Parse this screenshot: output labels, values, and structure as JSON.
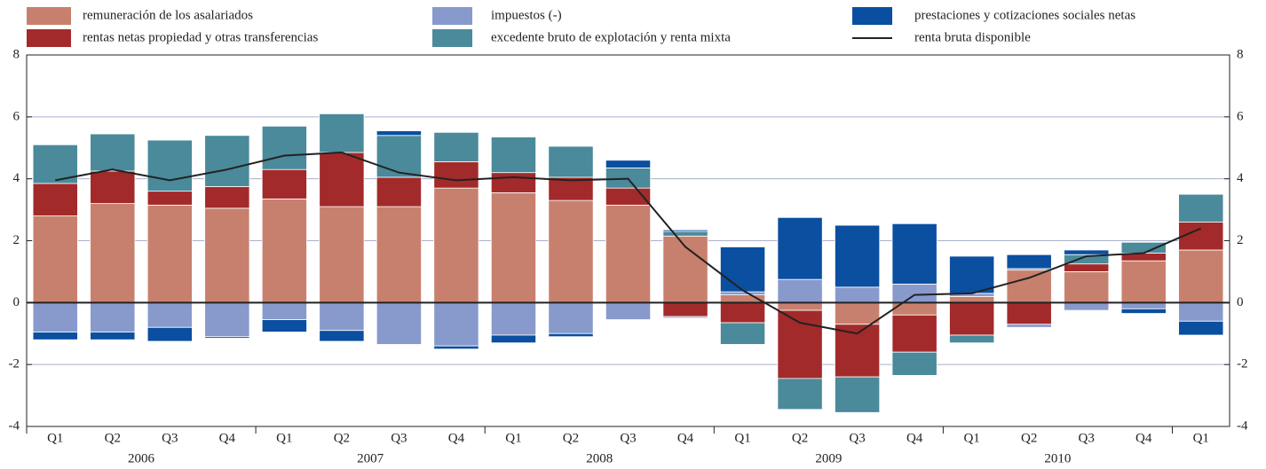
{
  "chart_data": {
    "type": "bar",
    "stacked": true,
    "categories": [
      "Q1",
      "Q2",
      "Q3",
      "Q4",
      "Q1",
      "Q2",
      "Q3",
      "Q4",
      "Q1",
      "Q2",
      "Q3",
      "Q4",
      "Q1",
      "Q2",
      "Q3",
      "Q4",
      "Q1",
      "Q2",
      "Q3",
      "Q4",
      "Q1"
    ],
    "years": [
      "2006",
      "2007",
      "2008",
      "2009",
      "2010"
    ],
    "series": [
      {
        "name": "remuneración de los asalariados",
        "color": "#c8806e",
        "values": [
          2.8,
          3.2,
          3.15,
          3.05,
          3.35,
          3.1,
          3.1,
          3.7,
          3.55,
          3.3,
          3.15,
          2.15,
          0.25,
          -0.25,
          -0.7,
          -0.4,
          0.2,
          1.05,
          1.0,
          1.35,
          1.7
        ]
      },
      {
        "name": "rentas netas propiedad y otras transferencias",
        "color": "#a32a2a",
        "values": [
          1.05,
          1.05,
          0.45,
          0.7,
          0.95,
          1.75,
          0.95,
          0.85,
          0.65,
          0.75,
          0.55,
          -0.45,
          -0.65,
          -2.2,
          -1.7,
          -1.2,
          -1.05,
          -0.7,
          0.25,
          0.25,
          0.9
        ]
      },
      {
        "name": "impuestos (-)",
        "color": "#8899cc",
        "values": [
          -0.95,
          -0.95,
          -0.8,
          -1.1,
          -0.55,
          -0.9,
          -1.35,
          -1.4,
          -1.05,
          -1.0,
          -0.55,
          -0.05,
          0.1,
          0.75,
          0.5,
          0.6,
          0.1,
          -0.1,
          -0.25,
          -0.2,
          -0.6
        ]
      },
      {
        "name": "excedente bruto de explotación y renta mixta",
        "color": "#4a8a9a",
        "values": [
          1.25,
          1.2,
          1.65,
          1.65,
          1.4,
          1.25,
          1.35,
          0.95,
          1.15,
          1.0,
          0.65,
          0.15,
          -0.7,
          -1.0,
          -1.15,
          -0.75,
          -0.25,
          0.05,
          0.3,
          0.35,
          0.9
        ]
      },
      {
        "name": "prestaciones y cotizaciones sociales netas",
        "color": "#0a4fa0",
        "values": [
          -0.25,
          -0.25,
          -0.45,
          -0.05,
          -0.4,
          -0.35,
          0.15,
          -0.1,
          -0.25,
          -0.1,
          0.25,
          0.05,
          1.45,
          2.0,
          2.0,
          1.95,
          1.2,
          0.45,
          0.15,
          -0.15,
          -0.45
        ]
      },
      {
        "name": "renta bruta disponible",
        "type": "line",
        "color": "#222222",
        "values": [
          3.95,
          4.3,
          3.95,
          4.3,
          4.75,
          4.85,
          4.2,
          3.95,
          4.05,
          3.95,
          4.0,
          1.8,
          0.4,
          -0.65,
          -1.0,
          0.25,
          0.3,
          0.8,
          1.5,
          1.6,
          2.4
        ]
      }
    ],
    "ylim": [
      -4,
      8
    ],
    "yticks": [
      -4,
      -2,
      0,
      2,
      4,
      6,
      8
    ],
    "grid": true
  }
}
